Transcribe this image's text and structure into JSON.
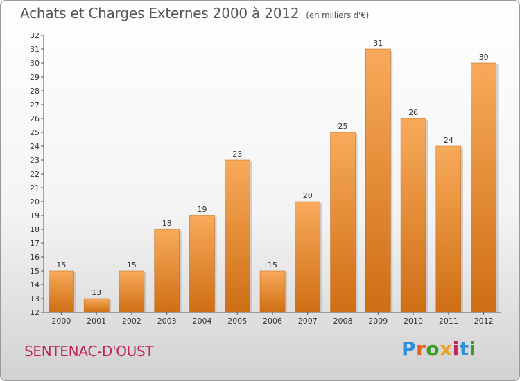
{
  "header": {
    "title": "Achats et Charges Externes 2000 à 2012",
    "unit": "(en milliers d'€)"
  },
  "footer": {
    "place": "SENTENAC-D'OUST",
    "logo_text": "Proxiti",
    "logo_colors": [
      "#2d8fd6",
      "#e85d20",
      "#3a9c2a",
      "#e8a220",
      "#c0245a",
      "#2d8fd6",
      "#3a9c2a"
    ]
  },
  "chart_data": {
    "type": "bar",
    "title": "Achats et Charges Externes 2000 à 2012",
    "subtitle": "(en milliers d'€)",
    "categories": [
      "2000",
      "2001",
      "2002",
      "2003",
      "2004",
      "2005",
      "2006",
      "2007",
      "2008",
      "2009",
      "2010",
      "2011",
      "2012"
    ],
    "values": [
      15,
      13,
      15,
      18,
      19,
      23,
      15,
      20,
      25,
      31,
      26,
      24,
      30
    ],
    "ylim": [
      12,
      32
    ],
    "yticks": [
      12,
      13,
      14,
      15,
      16,
      17,
      18,
      19,
      20,
      21,
      22,
      23,
      24,
      25,
      26,
      27,
      28,
      29,
      30,
      31,
      32
    ],
    "grid": false,
    "bar_color_top": "#f8aa5a",
    "bar_color_bottom": "#cf6e14"
  }
}
